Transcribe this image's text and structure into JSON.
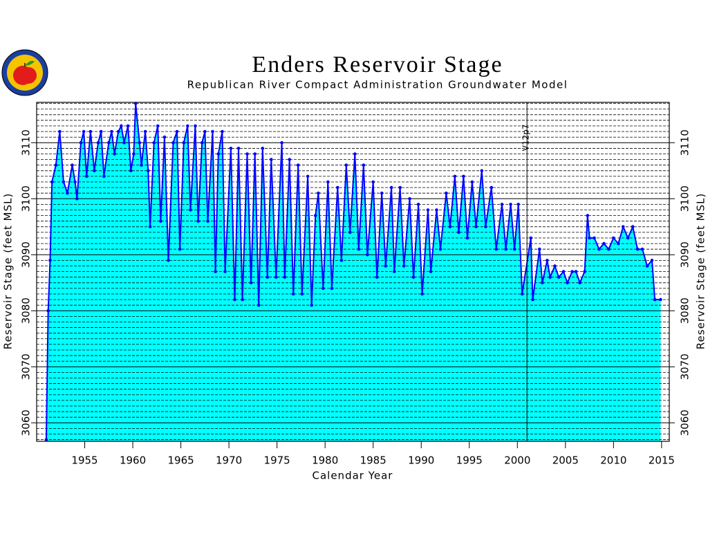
{
  "chart_data": {
    "type": "area-line",
    "title": "Enders Reservoir Stage",
    "subtitle": "Republican River Compact Administration Groundwater Model",
    "x_label": "Calendar Year",
    "y_label": "Reservoir Stage (feet MSL)",
    "y2_label": "Reservoir Stage (feet MSL)",
    "xlim": [
      1950,
      2015.8
    ],
    "xticks": [
      1955,
      1960,
      1965,
      1970,
      1975,
      1980,
      1985,
      1990,
      1995,
      2000,
      2005,
      2010,
      2015
    ],
    "ylim": [
      3056.7,
      3117.2
    ],
    "yticks": [
      3060,
      3070,
      3080,
      3090,
      3100,
      3110
    ],
    "y2lim": [
      3056.7,
      3117.2
    ],
    "y2ticks": [
      3060,
      3070,
      3080,
      3090,
      3100,
      3110
    ],
    "y_minor_grid": [
      3057,
      3058,
      3059,
      3061,
      3062,
      3063,
      3064,
      3065,
      3066,
      3067,
      3068,
      3069,
      3071,
      3072,
      3073,
      3074,
      3075,
      3076,
      3077,
      3078,
      3079,
      3081,
      3082,
      3083,
      3084,
      3085,
      3086,
      3087,
      3088,
      3089,
      3091,
      3092,
      3093,
      3094,
      3095,
      3096,
      3097,
      3098,
      3099,
      3101,
      3102,
      3103,
      3104,
      3105,
      3106,
      3107,
      3108,
      3109,
      3111,
      3112,
      3113,
      3114,
      3115,
      3116,
      3117
    ],
    "grid": true,
    "line_color": "#0000ff",
    "fill_color": "#00ffff",
    "annotations": [
      {
        "text": "V12p7",
        "x": 2001
      }
    ],
    "x": [
      1951.0,
      1951.2,
      1951.4,
      1951.6,
      1952.0,
      1952.4,
      1952.8,
      1953.2,
      1953.7,
      1954.0,
      1954.2,
      1954.6,
      1954.9,
      1955.2,
      1955.6,
      1956.0,
      1956.4,
      1956.7,
      1957.0,
      1957.5,
      1957.8,
      1958.1,
      1958.5,
      1958.8,
      1959.1,
      1959.5,
      1959.8,
      1960.1,
      1960.3,
      1960.7,
      1960.9,
      1961.3,
      1961.6,
      1961.8,
      1962.2,
      1962.6,
      1962.9,
      1963.3,
      1963.7,
      1964.2,
      1964.6,
      1964.9,
      1965.3,
      1965.7,
      1966.0,
      1966.5,
      1966.8,
      1967.2,
      1967.5,
      1967.8,
      1968.3,
      1968.6,
      1968.9,
      1969.3,
      1969.6,
      1970.2,
      1970.6,
      1971.0,
      1971.4,
      1971.9,
      1972.3,
      1972.7,
      1973.1,
      1973.5,
      1974.0,
      1974.4,
      1974.9,
      1975.5,
      1975.8,
      1976.3,
      1976.7,
      1977.2,
      1977.6,
      1978.2,
      1978.6,
      1979.0,
      1979.3,
      1979.8,
      1980.3,
      1980.7,
      1981.3,
      1981.7,
      1982.2,
      1982.6,
      1983.1,
      1983.5,
      1984.0,
      1984.4,
      1985.0,
      1985.4,
      1985.9,
      1986.3,
      1986.9,
      1987.2,
      1987.8,
      1988.2,
      1988.8,
      1989.2,
      1989.7,
      1990.1,
      1990.7,
      1991.0,
      1991.6,
      1992.0,
      1992.6,
      1993.0,
      1993.5,
      1993.9,
      1994.4,
      1994.8,
      1995.3,
      1995.7,
      1996.3,
      1996.7,
      1997.3,
      1997.8,
      1998.4,
      1998.8,
      1999.3,
      1999.7,
      2000.1,
      2000.5,
      2001.4,
      2001.6,
      2002.3,
      2002.6,
      2003.1,
      2003.4,
      2003.9,
      2004.3,
      2004.8,
      2005.2,
      2005.7,
      2006.1,
      2006.5,
      2007.0,
      2007.3,
      2007.5,
      2008.0,
      2008.5,
      2009.0,
      2009.5,
      2010.0,
      2010.5,
      2011.0,
      2011.5,
      2012.0,
      2012.5,
      2013.0,
      2013.5,
      2014.0,
      2014.3,
      2014.9
    ],
    "values": [
      3057,
      3080,
      3089,
      3103,
      3106,
      3112,
      3103,
      3101,
      3106,
      3103,
      3100,
      3110,
      3112,
      3104,
      3112,
      3105,
      3110,
      3112,
      3104,
      3110,
      3112,
      3108,
      3112,
      3113,
      3110,
      3113,
      3105,
      3108,
      3117,
      3110,
      3106,
      3112,
      3105,
      3095,
      3110,
      3113,
      3096,
      3111,
      3089,
      3110,
      3112,
      3091,
      3110,
      3113,
      3098,
      3113,
      3096,
      3110,
      3112,
      3096,
      3112,
      3087,
      3108,
      3112,
      3087,
      3109,
      3082,
      3109,
      3082,
      3108,
      3085,
      3108,
      3081,
      3109,
      3086,
      3107,
      3086,
      3110,
      3086,
      3107,
      3083,
      3106,
      3083,
      3104,
      3081,
      3097,
      3101,
      3084,
      3103,
      3084,
      3102,
      3089,
      3106,
      3094,
      3108,
      3091,
      3106,
      3090,
      3103,
      3086,
      3101,
      3088,
      3102,
      3087,
      3102,
      3088,
      3100,
      3086,
      3099,
      3083,
      3098,
      3087,
      3098,
      3091,
      3101,
      3095,
      3104,
      3094,
      3104,
      3093,
      3103,
      3095,
      3105,
      3095,
      3102,
      3091,
      3099,
      3091,
      3099,
      3091,
      3099,
      3083,
      3093,
      3082,
      3091,
      3085,
      3089,
      3086,
      3088,
      3086,
      3087,
      3085,
      3087,
      3087,
      3085,
      3087,
      3097,
      3093,
      3093,
      3091,
      3092,
      3091,
      3093,
      3092,
      3095,
      3093,
      3095,
      3091,
      3091,
      3088,
      3089,
      3082,
      3082
    ]
  }
}
